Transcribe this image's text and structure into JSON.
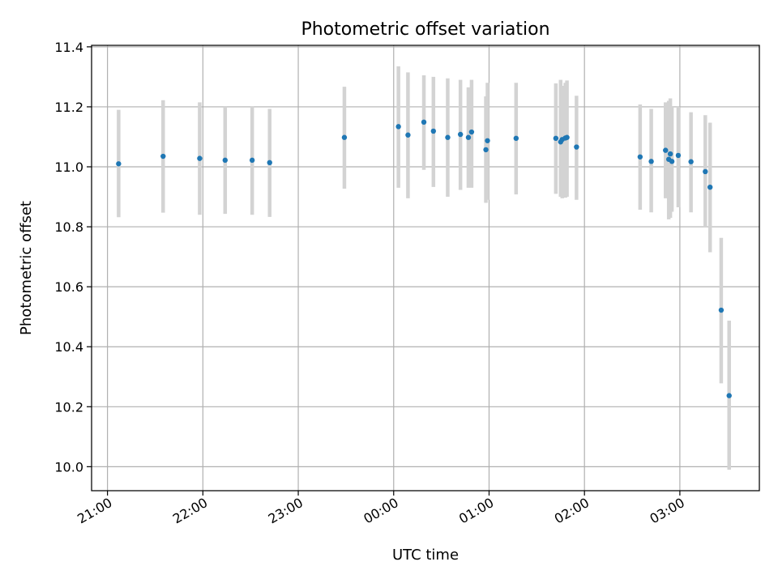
{
  "chart_data": {
    "type": "scatter",
    "title": "Photometric offset variation",
    "xlabel": "UTC time",
    "ylabel": "Photometric offset",
    "x_axis_kind": "time",
    "xlim": [
      "20:50",
      "03:50"
    ],
    "ylim": [
      9.92,
      11.405
    ],
    "xticks": [
      "21:00",
      "22:00",
      "23:00",
      "00:00",
      "01:00",
      "02:00",
      "03:00"
    ],
    "yticks": [
      10.0,
      10.2,
      10.4,
      10.6,
      10.8,
      11.0,
      11.2,
      11.4
    ],
    "ytick_labels": [
      "10.0",
      "10.2",
      "10.4",
      "10.6",
      "10.8",
      "11.0",
      "11.2",
      "11.4"
    ],
    "grid": true,
    "legend": "none",
    "marker_color": "#1f77b4",
    "errorbar_color": "#d3d3d3",
    "series": [
      {
        "x": [
          "21:07",
          "21:35",
          "21:58",
          "22:14",
          "22:31",
          "22:42",
          "23:29",
          "00:03",
          "00:09",
          "00:19",
          "00:25",
          "00:34",
          "00:42",
          "00:47",
          "00:49",
          "00:58",
          "00:59",
          "01:17",
          "01:42",
          "01:45",
          "01:46",
          "01:48",
          "01:49",
          "01:55",
          "02:35",
          "02:42",
          "02:51",
          "02:53",
          "02:54",
          "02:55",
          "02:59",
          "03:07",
          "03:16",
          "03:19",
          "03:26",
          "03:31"
        ],
        "y": [
          11.01,
          11.035,
          11.028,
          11.022,
          11.022,
          11.014,
          11.098,
          11.134,
          11.106,
          11.149,
          11.119,
          11.098,
          11.108,
          11.098,
          11.116,
          11.057,
          11.087,
          11.095,
          11.095,
          11.083,
          11.091,
          11.096,
          11.098,
          11.066,
          11.033,
          11.018,
          11.055,
          11.025,
          11.043,
          11.018,
          11.038,
          11.017,
          10.984,
          10.932,
          10.522,
          10.237
        ],
        "yerr_low": [
          10.832,
          10.847,
          10.84,
          10.843,
          10.84,
          10.833,
          10.927,
          10.93,
          10.895,
          10.99,
          10.933,
          10.9,
          10.923,
          10.93,
          10.93,
          10.88,
          10.89,
          10.908,
          10.91,
          10.9,
          10.895,
          10.897,
          10.9,
          10.89,
          10.857,
          10.848,
          10.895,
          10.825,
          10.83,
          10.85,
          10.865,
          10.848,
          10.8,
          10.715,
          10.278,
          9.99
        ],
        "yerr_high": [
          11.19,
          11.222,
          11.215,
          11.2,
          11.202,
          11.193,
          11.267,
          11.335,
          11.315,
          11.305,
          11.3,
          11.295,
          11.29,
          11.265,
          11.29,
          11.235,
          11.28,
          11.28,
          11.278,
          11.29,
          11.27,
          11.28,
          11.288,
          11.237,
          11.208,
          11.193,
          11.215,
          11.22,
          11.228,
          11.2,
          11.2,
          11.182,
          11.172,
          11.147,
          10.763,
          10.487
        ]
      }
    ]
  }
}
